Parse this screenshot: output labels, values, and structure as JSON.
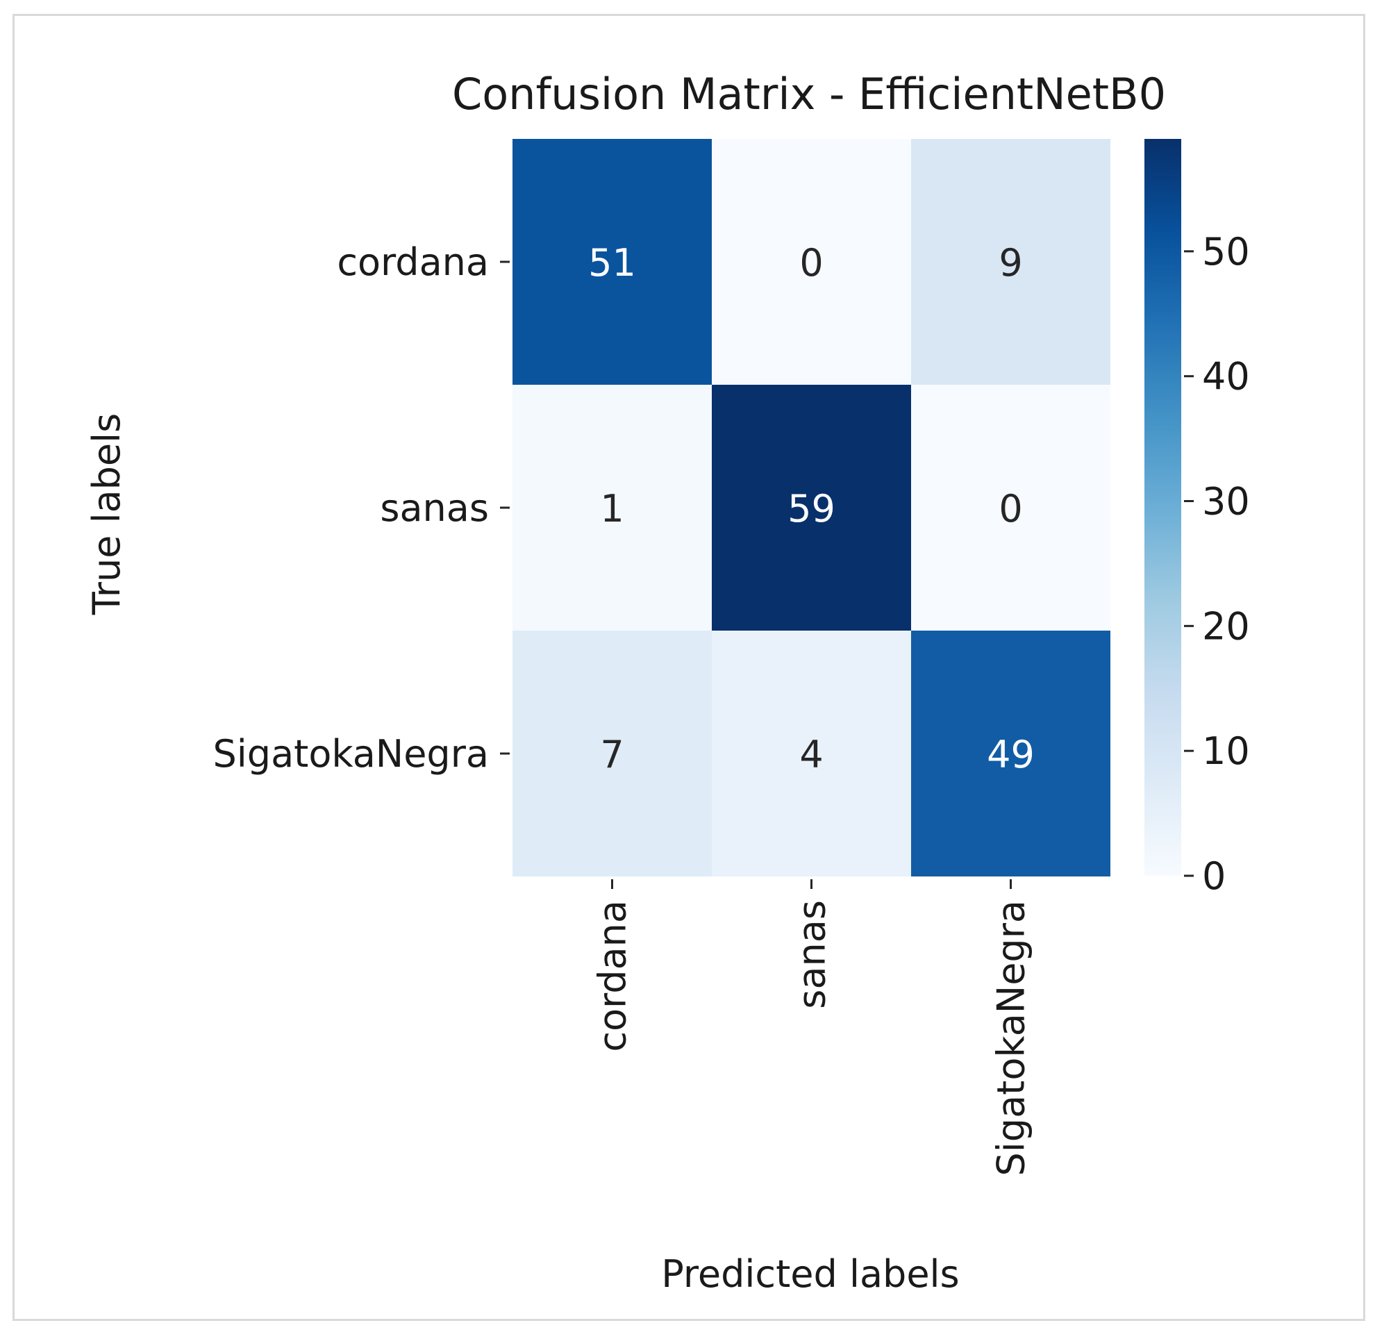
{
  "chart_data": {
    "type": "heatmap",
    "title": "Confusion Matrix - EfficientNetB0",
    "xlabel": "Predicted labels",
    "ylabel": "True labels",
    "x_categories": [
      "cordana",
      "sanas",
      "SigatokaNegra"
    ],
    "y_categories": [
      "cordana",
      "sanas",
      "SigatokaNegra"
    ],
    "values": [
      [
        51,
        0,
        9
      ],
      [
        1,
        59,
        0
      ],
      [
        7,
        4,
        49
      ]
    ],
    "colormap": "Blues",
    "colorbar": {
      "min": 0,
      "max": 59,
      "ticks": [
        0,
        10,
        20,
        30,
        40,
        50
      ]
    },
    "annotations": true
  }
}
